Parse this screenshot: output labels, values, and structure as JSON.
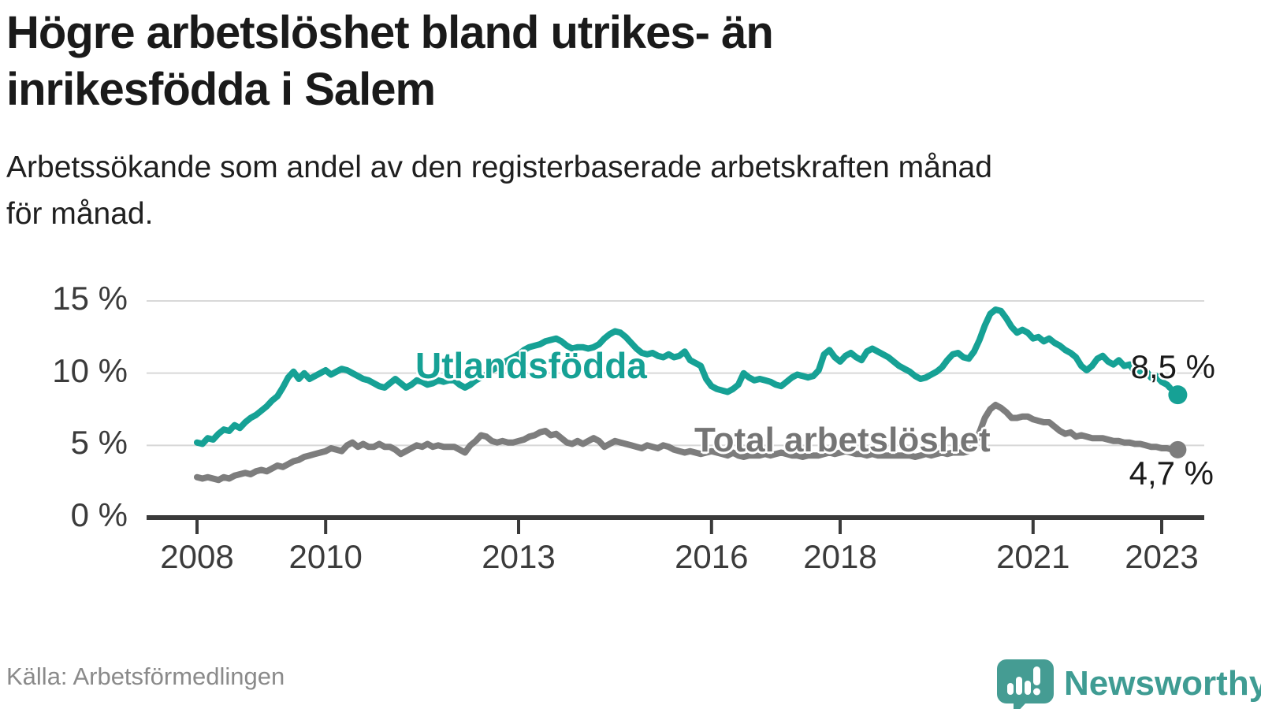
{
  "header": {
    "title": "Högre arbetslöshet bland utrikes- än\ninrikesfödda i Salem",
    "subtitle": "Arbetssökande som andel av den registerbaserade arbetskraften månad\nför månad."
  },
  "footer": {
    "source": "Källa: Arbetsförmedlingen",
    "brand": "Newsworthy"
  },
  "colors": {
    "series_foreign_born": "#16a195",
    "series_total": "#7d7d7d",
    "total_label": "#757575",
    "gridline": "#d8d8d8",
    "axis": "#3a3a3a",
    "tick_text": "#3b3b3b",
    "title_text": "#1a1a1a",
    "source_text": "#8a8a8a",
    "logo_teal": "#459c93"
  },
  "chart_data": {
    "type": "line",
    "title": "Högre arbetslöshet bland utrikes- än inrikesfödda i Salem",
    "subtitle": "Arbetssökande som andel av den registerbaserade arbetskraften månad för månad.",
    "xlabel": "",
    "ylabel": "",
    "x_start_year": 2008.0,
    "x_step_years": 0.083333,
    "x_ticks": [
      2008,
      2010,
      2013,
      2016,
      2018,
      2021,
      2023
    ],
    "x_tick_labels": [
      "2008",
      "2010",
      "2013",
      "2016",
      "2018",
      "2021",
      "2023"
    ],
    "y_ticks": [
      0,
      5,
      10,
      15
    ],
    "y_tick_labels": [
      "0 %",
      "5 %",
      "10 %",
      "15 %"
    ],
    "ylim": [
      0,
      15.5
    ],
    "grid": "horizontal",
    "legend_position": "inline-labels",
    "series": [
      {
        "name": "Utlandsfödda",
        "color": "#16a195",
        "end_label": "8,5 %",
        "end_value": 8.5,
        "dashed_tail_points": 4,
        "values": [
          5.2,
          5.1,
          5.5,
          5.4,
          5.8,
          6.1,
          6.0,
          6.4,
          6.2,
          6.6,
          6.9,
          7.1,
          7.4,
          7.7,
          8.1,
          8.4,
          9.0,
          9.7,
          10.1,
          9.6,
          10.0,
          9.6,
          9.8,
          10.0,
          10.2,
          9.9,
          10.1,
          10.3,
          10.2,
          10.0,
          9.8,
          9.6,
          9.5,
          9.3,
          9.1,
          9.0,
          9.3,
          9.6,
          9.3,
          9.0,
          9.2,
          9.5,
          9.4,
          9.2,
          9.3,
          9.5,
          9.4,
          9.5,
          9.5,
          9.2,
          9.0,
          9.2,
          9.5,
          9.7,
          9.9,
          10.2,
          10.4,
          10.7,
          10.9,
          11.1,
          11.3,
          11.6,
          11.8,
          11.9,
          12.0,
          12.2,
          12.3,
          12.4,
          12.2,
          11.9,
          11.7,
          11.8,
          11.8,
          11.7,
          11.8,
          12.0,
          12.4,
          12.7,
          12.9,
          12.8,
          12.5,
          12.1,
          11.7,
          11.4,
          11.3,
          11.4,
          11.2,
          11.1,
          11.3,
          11.1,
          11.2,
          11.5,
          10.9,
          10.7,
          10.5,
          9.6,
          9.1,
          8.9,
          8.8,
          8.7,
          8.9,
          9.2,
          10.0,
          9.7,
          9.5,
          9.6,
          9.5,
          9.4,
          9.2,
          9.1,
          9.4,
          9.7,
          9.9,
          9.8,
          9.7,
          9.8,
          10.2,
          11.3,
          11.6,
          11.1,
          10.8,
          11.2,
          11.4,
          11.1,
          10.9,
          11.5,
          11.7,
          11.5,
          11.3,
          11.1,
          10.8,
          10.5,
          10.3,
          10.1,
          9.8,
          9.6,
          9.7,
          9.9,
          10.1,
          10.4,
          10.9,
          11.3,
          11.4,
          11.1,
          11.0,
          11.5,
          12.3,
          13.3,
          14.1,
          14.4,
          14.3,
          13.8,
          13.2,
          12.8,
          13.0,
          12.8,
          12.4,
          12.5,
          12.2,
          12.4,
          12.1,
          11.9,
          11.6,
          11.4,
          11.1,
          10.5,
          10.2,
          10.5,
          11.0,
          11.2,
          10.8,
          10.6,
          10.9,
          10.5,
          10.6,
          10.1,
          10.0,
          10.2,
          9.7,
          9.8,
          9.4,
          9.2,
          8.8,
          8.5
        ]
      },
      {
        "name": "Total arbetslöshet",
        "color": "#7d7d7d",
        "end_label": "4,7 %",
        "end_value": 4.7,
        "dashed_tail_points": 0,
        "values": [
          2.8,
          2.7,
          2.8,
          2.7,
          2.6,
          2.8,
          2.7,
          2.9,
          3.0,
          3.1,
          3.0,
          3.2,
          3.3,
          3.2,
          3.4,
          3.6,
          3.5,
          3.7,
          3.9,
          4.0,
          4.2,
          4.3,
          4.4,
          4.5,
          4.6,
          4.8,
          4.7,
          4.6,
          5.0,
          5.2,
          4.9,
          5.1,
          4.9,
          4.9,
          5.1,
          4.9,
          4.9,
          4.7,
          4.4,
          4.6,
          4.8,
          5.0,
          4.9,
          5.1,
          4.9,
          5.0,
          4.9,
          4.9,
          4.9,
          4.7,
          4.5,
          5.0,
          5.3,
          5.7,
          5.6,
          5.3,
          5.2,
          5.3,
          5.2,
          5.2,
          5.3,
          5.4,
          5.6,
          5.7,
          5.9,
          6.0,
          5.7,
          5.8,
          5.5,
          5.2,
          5.1,
          5.3,
          5.1,
          5.3,
          5.5,
          5.3,
          4.9,
          5.1,
          5.3,
          5.2,
          5.1,
          5.0,
          4.9,
          4.8,
          5.0,
          4.9,
          4.8,
          5.0,
          4.9,
          4.7,
          4.6,
          4.5,
          4.6,
          4.5,
          4.4,
          4.5,
          4.6,
          4.5,
          4.4,
          4.3,
          4.5,
          4.3,
          4.2,
          4.3,
          4.3,
          4.3,
          4.4,
          4.3,
          4.4,
          4.5,
          4.4,
          4.3,
          4.3,
          4.2,
          4.3,
          4.3,
          4.3,
          4.4,
          4.5,
          4.4,
          4.5,
          4.6,
          4.5,
          4.4,
          4.4,
          4.3,
          4.4,
          4.3,
          4.3,
          4.3,
          4.3,
          4.3,
          4.3,
          4.3,
          4.2,
          4.3,
          4.4,
          4.3,
          4.4,
          4.5,
          4.4,
          4.5,
          4.5,
          4.5,
          4.6,
          5.0,
          5.9,
          6.9,
          7.5,
          7.8,
          7.6,
          7.3,
          6.9,
          6.9,
          7.0,
          7.0,
          6.8,
          6.7,
          6.6,
          6.6,
          6.3,
          6.0,
          5.8,
          5.9,
          5.6,
          5.7,
          5.6,
          5.5,
          5.5,
          5.5,
          5.4,
          5.3,
          5.3,
          5.2,
          5.2,
          5.1,
          5.1,
          5.0,
          4.9,
          4.9,
          4.8,
          4.8,
          4.7,
          4.7
        ]
      }
    ]
  }
}
